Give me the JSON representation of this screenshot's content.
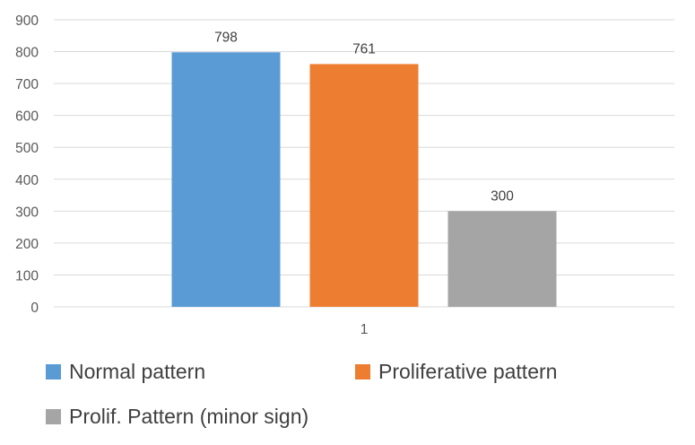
{
  "chart_data": {
    "type": "bar",
    "categories": [
      "1"
    ],
    "series": [
      {
        "name": "Normal pattern",
        "values": [
          798
        ],
        "color": "#5B9BD5"
      },
      {
        "name": "Proliferative pattern",
        "values": [
          761
        ],
        "color": "#ED7D31"
      },
      {
        "name": "Prolif. Pattern (minor sign)",
        "values": [
          300
        ],
        "color": "#A5A5A5"
      }
    ],
    "data_labels": [
      "798",
      "761",
      "300"
    ],
    "title": "",
    "xlabel": "",
    "ylabel": "",
    "ylim": [
      0,
      900
    ],
    "yticks": [
      0,
      100,
      200,
      300,
      400,
      500,
      600,
      700,
      800,
      900
    ],
    "grid": true,
    "legend_position": "bottom"
  }
}
